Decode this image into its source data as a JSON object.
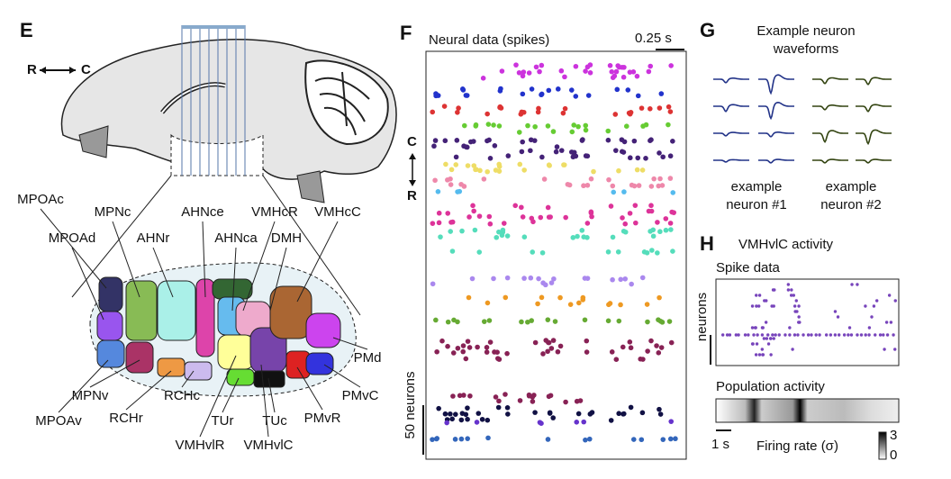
{
  "panels": {
    "E": {
      "label": "E",
      "axis": {
        "rostral": "R",
        "caudal": "C"
      },
      "regions": [
        "MPOAc",
        "MPOAd",
        "MPNc",
        "AHNr",
        "AHNce",
        "AHNca",
        "VMHcR",
        "VMHcC",
        "DMH",
        "PMd",
        "PMvC",
        "PMvR",
        "TUc",
        "TUr",
        "VMHvlC",
        "VMHvlR",
        "RCHc",
        "RCHr",
        "MPNv",
        "MPOAv"
      ]
    },
    "F": {
      "label": "F",
      "title": "Neural data (spikes)",
      "time_scale": "0.25 s",
      "axis": {
        "caudal": "C",
        "rostral": "R"
      },
      "neuron_scale": "50 neurons"
    },
    "G": {
      "label": "G",
      "title_lines": [
        "Example neuron",
        "waveforms"
      ],
      "captions": [
        [
          "example",
          "neuron #1"
        ],
        [
          "example",
          "neuron #2"
        ]
      ]
    },
    "H": {
      "label": "H",
      "title": "VMHvlC activity",
      "spike_title": "Spike data",
      "neurons_label": "neurons",
      "population_title": "Population activity",
      "time_scale": "1 s",
      "colorbar_label": "Firing rate (σ)",
      "colorbar_max": "3",
      "colorbar_min": "0"
    }
  }
}
